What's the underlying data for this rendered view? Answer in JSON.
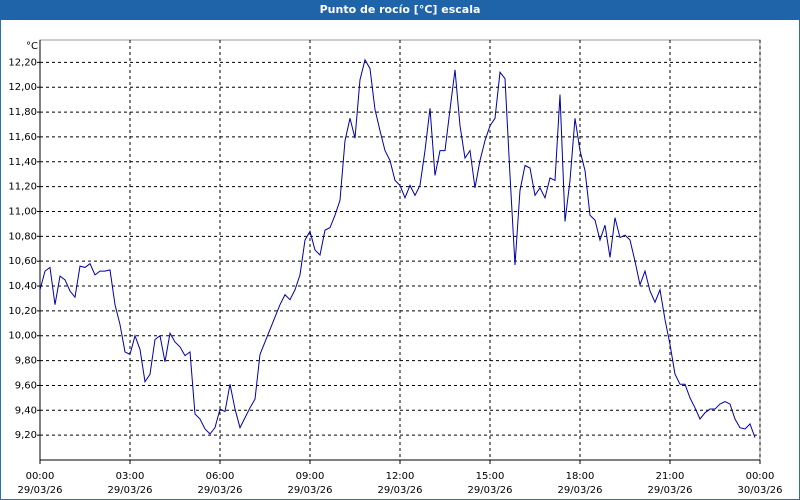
{
  "chart_data": {
    "type": "line",
    "title": "Punto de rocío [°C] escala",
    "y_label": "°C",
    "x": [
      0,
      10,
      20,
      30,
      40,
      50,
      60,
      70,
      80,
      90,
      100,
      110,
      120,
      130,
      140,
      150,
      160,
      170,
      180,
      190,
      200,
      210,
      220,
      230,
      240,
      250,
      260,
      270,
      280,
      290,
      300,
      310,
      320,
      330,
      340,
      350,
      360,
      370,
      380,
      390,
      400,
      410,
      420,
      430,
      440,
      450,
      460,
      470,
      480,
      490,
      500,
      510,
      520,
      530,
      540,
      550,
      560,
      570,
      580,
      590,
      600,
      610,
      620,
      630,
      640,
      650,
      660,
      670,
      680,
      690,
      700,
      710,
      720,
      730,
      740,
      750,
      760,
      770,
      780,
      790,
      800,
      810,
      820,
      830,
      840,
      850,
      860,
      870,
      880,
      890,
      900,
      910,
      920,
      930,
      940,
      950,
      960,
      970,
      980,
      990,
      1000,
      1010,
      1020,
      1030,
      1040,
      1050,
      1060,
      1070,
      1080,
      1090,
      1100,
      1110,
      1120,
      1130,
      1140,
      1150,
      1160,
      1170,
      1180,
      1190,
      1200,
      1210,
      1220,
      1230,
      1240,
      1250,
      1260,
      1270,
      1280,
      1290,
      1300,
      1310,
      1320,
      1330,
      1340,
      1350,
      1360,
      1370,
      1380,
      1390,
      1400,
      1410,
      1420,
      1430
    ],
    "series": [
      {
        "color": "#0000a8",
        "values": [
          10.37,
          10.52,
          10.55,
          10.25,
          10.48,
          10.45,
          10.36,
          10.31,
          10.56,
          10.55,
          10.58,
          10.49,
          10.52,
          10.52,
          10.53,
          10.25,
          10.09,
          9.87,
          9.85,
          10.0,
          9.89,
          9.63,
          9.69,
          9.97,
          10.0,
          9.79,
          10.02,
          9.95,
          9.91,
          9.84,
          9.87,
          9.37,
          9.33,
          9.25,
          9.21,
          9.26,
          9.41,
          9.39,
          9.61,
          9.41,
          9.26,
          9.34,
          9.42,
          9.49,
          9.85,
          9.95,
          10.05,
          10.15,
          10.25,
          10.33,
          10.29,
          10.37,
          10.49,
          10.77,
          10.84,
          10.69,
          10.65,
          10.85,
          10.87,
          10.97,
          11.09,
          11.57,
          11.75,
          11.59,
          12.06,
          12.22,
          12.15,
          11.82,
          11.65,
          11.49,
          11.41,
          11.25,
          11.21,
          11.11,
          11.21,
          11.13,
          11.21,
          11.49,
          11.83,
          11.29,
          11.49,
          11.49,
          11.82,
          12.14,
          11.69,
          11.43,
          11.49,
          11.19,
          11.41,
          11.57,
          11.69,
          11.75,
          12.12,
          12.07,
          11.29,
          10.57,
          11.17,
          11.37,
          11.35,
          11.13,
          11.19,
          11.11,
          11.27,
          11.25,
          11.94,
          10.92,
          11.25,
          11.75,
          11.49,
          11.33,
          10.97,
          10.93,
          10.77,
          10.89,
          10.63,
          10.95,
          10.79,
          10.81,
          10.77,
          10.6,
          10.41,
          10.52,
          10.36,
          10.27,
          10.37,
          10.13,
          9.93,
          9.69,
          9.61,
          9.61,
          9.5,
          9.42,
          9.33,
          9.38,
          9.41,
          9.41,
          9.45,
          9.47,
          9.45,
          9.33,
          9.26,
          9.25,
          9.29,
          9.18
        ]
      }
    ],
    "xlim": [
      0,
      1440
    ],
    "ylim": [
      9.0,
      12.38
    ],
    "xticks": [
      {
        "value": 0,
        "label": "00:00",
        "date": "29/03/26"
      },
      {
        "value": 180,
        "label": "03:00",
        "date": "29/03/26"
      },
      {
        "value": 360,
        "label": "06:00",
        "date": "29/03/26"
      },
      {
        "value": 540,
        "label": "09:00",
        "date": "29/03/26"
      },
      {
        "value": 720,
        "label": "12:00",
        "date": "29/03/26"
      },
      {
        "value": 900,
        "label": "15:00",
        "date": "29/03/26"
      },
      {
        "value": 1080,
        "label": "18:00",
        "date": "29/03/26"
      },
      {
        "value": 1260,
        "label": "21:00",
        "date": "29/03/26"
      },
      {
        "value": 1440,
        "label": "00:00",
        "date": "30/03/26"
      }
    ],
    "yticks": [
      {
        "value": 9.2,
        "label": "9,20"
      },
      {
        "value": 9.4,
        "label": "9,40"
      },
      {
        "value": 9.6,
        "label": "9,60"
      },
      {
        "value": 9.8,
        "label": "9,80"
      },
      {
        "value": 10.0,
        "label": "10,00"
      },
      {
        "value": 10.2,
        "label": "10,20"
      },
      {
        "value": 10.4,
        "label": "10,40"
      },
      {
        "value": 10.6,
        "label": "10,60"
      },
      {
        "value": 10.8,
        "label": "10,80"
      },
      {
        "value": 11.0,
        "label": "11,00"
      },
      {
        "value": 11.2,
        "label": "11,20"
      },
      {
        "value": 11.4,
        "label": "11,40"
      },
      {
        "value": 11.6,
        "label": "11,60"
      },
      {
        "value": 11.8,
        "label": "11,80"
      },
      {
        "value": 12.0,
        "label": "12,00"
      },
      {
        "value": 12.2,
        "label": "12,20"
      }
    ],
    "grid": true
  }
}
